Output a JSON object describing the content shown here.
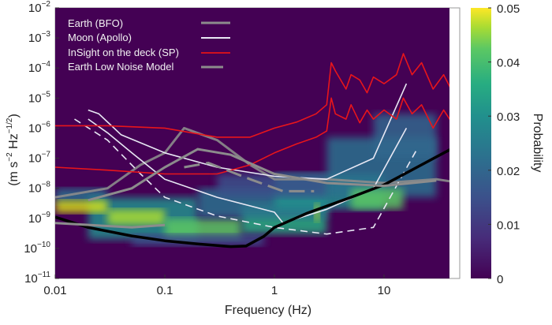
{
  "chart_data": {
    "type": "heatmap",
    "title": "",
    "xlabel": "Frequency (Hz)",
    "ylabel_parts": [
      "(m s",
      "−2",
      " Hz",
      "−1/2",
      ")"
    ],
    "xscale": "log",
    "yscale": "log",
    "xlim": [
      0.01,
      50
    ],
    "ylim": [
      1e-11,
      0.01
    ],
    "x_ticks": [
      0.01,
      0.1,
      1,
      10
    ],
    "x_tick_labels": [
      "0.01",
      "0.1",
      "1",
      "10"
    ],
    "y_tick_exponents": [
      "−2",
      "−3",
      "−4",
      "−5",
      "−6",
      "−7",
      "−8",
      "−9",
      "−10",
      "−11"
    ],
    "y_tick_base": "10",
    "colorbar": {
      "label": "Probability",
      "range": [
        0,
        0.05
      ],
      "ticks": [
        "0",
        "0.01",
        "0.02",
        "0.03",
        "0.04",
        "0.05"
      ]
    },
    "legend": {
      "placement": "top-left",
      "entries": [
        {
          "label": "Earth (BFO)",
          "color": "#8c8c8c",
          "style": "solid"
        },
        {
          "label": "Moon (Apollo)",
          "color": "#e8e8f4",
          "style": "solid"
        },
        {
          "label": "InSight on the deck (SP)",
          "color": "#e8151b",
          "style": "solid"
        },
        {
          "label": "Earth Low Noise Model",
          "color": "#8c8c8c",
          "style": "dashed"
        }
      ]
    },
    "series": [
      {
        "name": "Earth Low Noise Model (black)",
        "color": "#000000",
        "x": [
          0.01,
          0.02,
          0.05,
          0.1,
          0.2,
          0.4,
          0.55,
          0.8,
          1,
          2,
          5,
          10,
          20,
          50
        ],
        "y": [
          1.1e-09,
          5e-10,
          2.6e-10,
          1.8e-10,
          1.4e-10,
          1.15e-10,
          1.2e-10,
          2.5e-10,
          5e-10,
          1.5e-09,
          5e-09,
          1.3e-08,
          5e-08,
          3e-07
        ]
      },
      {
        "name": "InSight on the deck (SP) upper",
        "color": "#e8151b",
        "x": [
          0.01,
          0.03,
          0.1,
          0.3,
          0.6,
          1,
          1.6,
          2.4,
          3,
          3.3,
          3.6,
          4.5,
          5,
          6,
          7,
          8,
          10,
          13,
          15,
          18,
          22,
          28,
          35,
          45
        ],
        "y": [
          1.2e-06,
          1.2e-06,
          1e-06,
          5e-07,
          5e-07,
          1e-06,
          1.6e-06,
          3e-06,
          6e-06,
          0.00015,
          8e-05,
          2e-05,
          6e-05,
          4e-05,
          1.5e-05,
          5e-05,
          3e-05,
          6e-05,
          0.0003,
          6e-05,
          0.00015,
          2e-05,
          6e-05,
          1e-05
        ]
      },
      {
        "name": "InSight on the deck (SP) lower",
        "color": "#e8151b",
        "x": [
          0.01,
          0.03,
          0.1,
          0.3,
          0.6,
          1,
          1.6,
          2.4,
          3,
          3.3,
          3.6,
          4.5,
          5,
          6,
          7,
          8,
          10,
          13,
          15,
          18,
          22,
          28,
          35,
          45
        ],
        "y": [
          5e-08,
          4e-08,
          3e-08,
          3e-08,
          6e-08,
          1.5e-07,
          3e-07,
          5e-07,
          8e-07,
          1e-05,
          3e-06,
          2e-06,
          6e-06,
          1.5e-06,
          4e-06,
          2e-06,
          4e-06,
          2e-06,
          1e-05,
          3e-06,
          6e-06,
          1e-06,
          4e-06,
          1e-06
        ]
      },
      {
        "name": "Moon (Apollo) 1",
        "color": "#e8e8f4",
        "x": [
          0.02,
          0.025,
          0.04,
          0.1,
          0.3,
          1,
          3,
          8,
          16
        ],
        "y": [
          4e-06,
          3e-06,
          6e-07,
          1.5e-07,
          5e-08,
          2.5e-08,
          2e-08,
          1e-07,
          3e-05
        ]
      },
      {
        "name": "Moon (Apollo) 2",
        "color": "#e8e8f4",
        "x": [
          0.02,
          0.03,
          0.05,
          0.1,
          0.3,
          1,
          1.2,
          3,
          8,
          16
        ],
        "y": [
          2e-06,
          7e-07,
          1.5e-07,
          2e-08,
          5e-09,
          1.6e-09,
          7e-10,
          2e-09,
          1e-08,
          1e-06
        ]
      },
      {
        "name": "Moon (Apollo) dashed",
        "color": "#e8e8f4",
        "style": "dashed",
        "x": [
          0.015,
          0.03,
          0.06,
          0.1,
          0.3,
          1,
          3,
          8,
          20
        ],
        "y": [
          2e-06,
          4e-07,
          3e-08,
          5e-09,
          1.2e-09,
          5e-10,
          3e-10,
          5e-10,
          2e-07
        ]
      },
      {
        "name": "Earth (BFO) gray curves",
        "color": "#8c8c8c",
        "x": [
          0.01,
          0.03,
          0.06,
          0.1,
          0.15,
          0.3,
          0.6,
          1,
          3,
          10,
          30,
          50
        ],
        "y": [
          5e-09,
          1e-08,
          6e-08,
          1.5e-07,
          1e-06,
          4e-07,
          6e-08,
          2e-08,
          2e-08,
          1.5e-08,
          2e-08,
          1.5e-08
        ]
      }
    ]
  }
}
